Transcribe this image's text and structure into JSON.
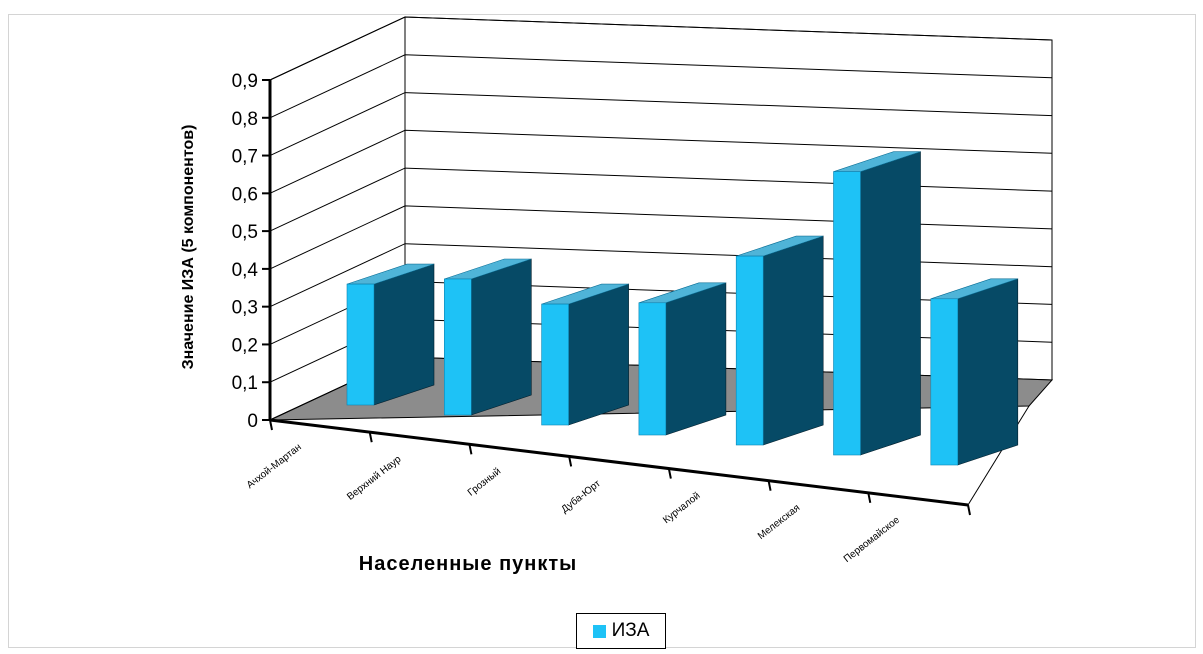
{
  "chart_data": {
    "type": "bar",
    "categories": [
      "Ачхой-Мартан",
      "Верхний Наур",
      "Грозный",
      "Дуба-Юрт",
      "Курчалой",
      "Мелекская",
      "Первомайское"
    ],
    "series": [
      {
        "name": "ИЗА",
        "values": [
          0.32,
          0.36,
          0.32,
          0.35,
          0.5,
          0.75,
          0.44
        ]
      }
    ],
    "ylabel": "Значение ИЗА (5 компонентов)",
    "xlabel": "Населенные пункты",
    "ylim": [
      0,
      0.9
    ],
    "yticks": [
      "0",
      "0,1",
      "0,2",
      "0,3",
      "0,4",
      "0,5",
      "0,6",
      "0,7",
      "0,8",
      "0,9"
    ],
    "grid": true,
    "legend_position": "bottom",
    "colors": {
      "bar_front": "#1ec2f6",
      "bar_side": "#064a66",
      "bar_top": "#4fb4d8",
      "floor": "#8c8c8c",
      "grid": "#000000",
      "back_wall": "#ffffff"
    }
  }
}
